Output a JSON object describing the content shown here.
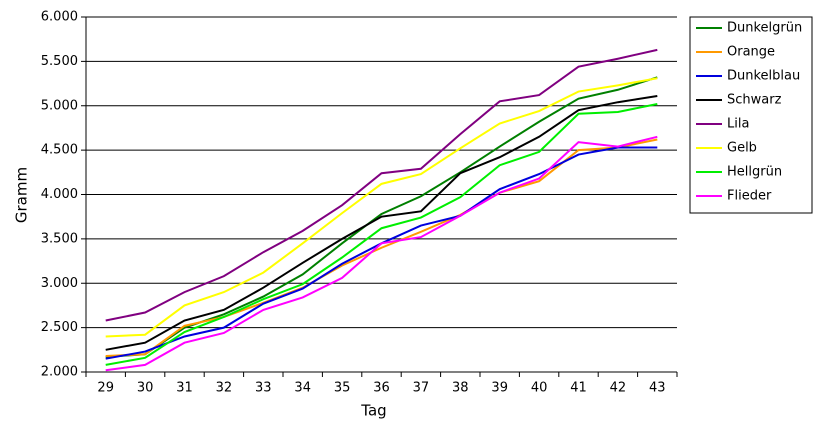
{
  "chart_data": {
    "type": "line",
    "x_label": "Tag",
    "y_label": "Gramm",
    "categories": [
      "29",
      "30",
      "31",
      "32",
      "33",
      "34",
      "35",
      "36",
      "37",
      "38",
      "39",
      "40",
      "41",
      "42",
      "43"
    ],
    "ylim": [
      2000,
      6000
    ],
    "yticks": [
      {
        "value": 2000,
        "label": "2.000"
      },
      {
        "value": 2500,
        "label": "2.500"
      },
      {
        "value": 3000,
        "label": "3.000"
      },
      {
        "value": 3500,
        "label": "3.500"
      },
      {
        "value": 4000,
        "label": "4.000"
      },
      {
        "value": 4500,
        "label": "4.500"
      },
      {
        "value": 5000,
        "label": "5.000"
      },
      {
        "value": 5500,
        "label": "5.500"
      },
      {
        "value": 6000,
        "label": "6.000"
      }
    ],
    "grid": true,
    "legend": "right",
    "series": [
      {
        "name": "Dunkelgrün",
        "color": "#008000",
        "values": [
          2170,
          2200,
          2500,
          2650,
          2850,
          3100,
          3450,
          3780,
          3980,
          4250,
          4540,
          4820,
          5080,
          5180,
          5320
        ]
      },
      {
        "name": "Orange",
        "color": "#ff9900",
        "values": [
          2180,
          2200,
          2520,
          2620,
          2780,
          2950,
          3200,
          3400,
          3580,
          3770,
          4020,
          4150,
          4500,
          4530,
          4620
        ]
      },
      {
        "name": "Dunkelblau",
        "color": "#0000dd",
        "values": [
          2150,
          2230,
          2400,
          2500,
          2770,
          2940,
          3220,
          3450,
          3650,
          3760,
          4060,
          4230,
          4450,
          4530,
          4530
        ]
      },
      {
        "name": "Schwarz",
        "color": "#000000",
        "values": [
          2250,
          2330,
          2580,
          2700,
          2950,
          3230,
          3500,
          3750,
          3810,
          4240,
          4420,
          4650,
          4950,
          5040,
          5110
        ]
      },
      {
        "name": "Lila",
        "color": "#800080",
        "values": [
          2580,
          2670,
          2900,
          3080,
          3350,
          3590,
          3880,
          4240,
          4290,
          4680,
          5050,
          5120,
          5440,
          5530,
          5630
        ]
      },
      {
        "name": "Gelb",
        "color": "#ffff00",
        "values": [
          2400,
          2420,
          2750,
          2900,
          3120,
          3450,
          3790,
          4120,
          4230,
          4520,
          4800,
          4940,
          5160,
          5230,
          5310
        ]
      },
      {
        "name": "Hellgrün",
        "color": "#00ee00",
        "values": [
          2080,
          2160,
          2450,
          2620,
          2820,
          2990,
          3290,
          3620,
          3740,
          3970,
          4330,
          4480,
          4910,
          4930,
          5020
        ]
      },
      {
        "name": "Flieder",
        "color": "#ff00ff",
        "values": [
          2020,
          2080,
          2330,
          2440,
          2700,
          2840,
          3060,
          3450,
          3520,
          3760,
          4020,
          4180,
          4590,
          4540,
          4650
        ]
      }
    ]
  }
}
